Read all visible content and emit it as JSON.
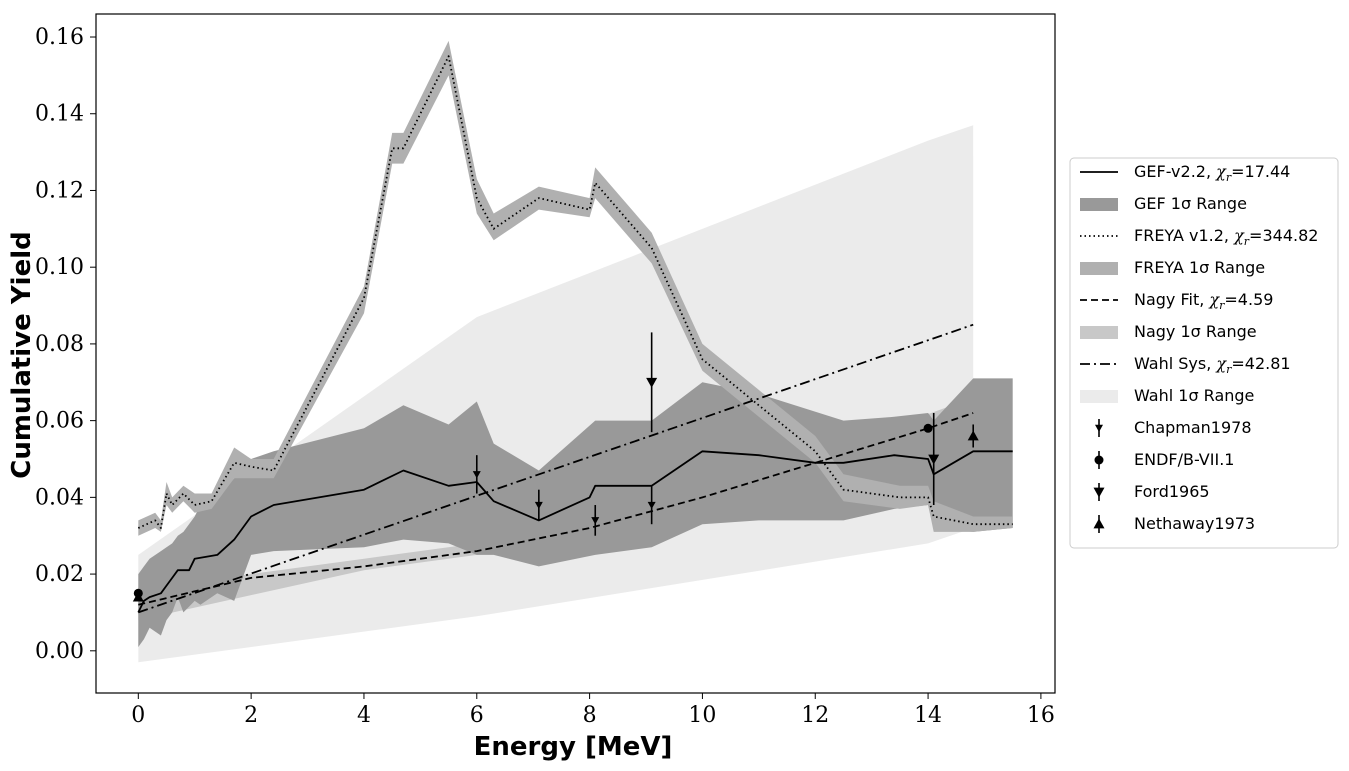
{
  "chart_data": {
    "type": "line",
    "xlabel": "Energy [MeV]",
    "ylabel": "Cumulative Yield",
    "xlim": [
      -0.75,
      16.25
    ],
    "ylim": [
      -0.011,
      0.166
    ],
    "xticks": [
      0,
      2,
      4,
      6,
      8,
      10,
      12,
      14,
      16
    ],
    "yticks": [
      0.0,
      0.02,
      0.04,
      0.06,
      0.08,
      0.1,
      0.12,
      0.14,
      0.16
    ],
    "xtick_labels": [
      "0",
      "2",
      "4",
      "6",
      "8",
      "10",
      "12",
      "14",
      "16"
    ],
    "ytick_labels": [
      "0.00",
      "0.02",
      "0.04",
      "0.06",
      "0.08",
      "0.10",
      "0.12",
      "0.14",
      "0.16"
    ],
    "legend_position": "center-right, outside plot",
    "colors": {
      "line": "#000000",
      "gef_band": "#999999",
      "freya_band": "#b0b0b0",
      "nagy_band": "#c8c8c8",
      "wahl_band": "#ebebeb"
    },
    "bands": [
      {
        "name": "Wahl 1σ Range",
        "color": "#ebebeb",
        "x": [
          0,
          6,
          14,
          14.8
        ],
        "upper": [
          0.025,
          0.087,
          0.133,
          0.137
        ],
        "lower": [
          -0.003,
          0.009,
          0.028,
          0.032
        ]
      },
      {
        "name": "Nagy 1σ Range",
        "color": "#c8c8c8",
        "x": [
          0,
          4,
          6,
          9,
          12,
          14.8
        ],
        "upper": [
          0.016,
          0.024,
          0.028,
          0.04,
          0.051,
          0.066
        ],
        "lower": [
          0.008,
          0.021,
          0.025,
          0.034,
          0.047,
          0.058
        ]
      },
      {
        "name": "GEF 1σ Range",
        "color": "#999999",
        "x": [
          0,
          0.1,
          0.2,
          0.4,
          0.5,
          0.6,
          0.7,
          0.8,
          1.0,
          1.1,
          1.4,
          1.7,
          2.0,
          2.4,
          4.0,
          4.7,
          5.5,
          6.0,
          6.3,
          7.1,
          8.1,
          9.1,
          10.0,
          11.0,
          12.5,
          13.4,
          14.0,
          14.1,
          14.8,
          15.5
        ],
        "upper": [
          0.02,
          0.022,
          0.024,
          0.026,
          0.027,
          0.028,
          0.03,
          0.031,
          0.035,
          0.038,
          0.04,
          0.045,
          0.05,
          0.052,
          0.058,
          0.064,
          0.059,
          0.065,
          0.054,
          0.047,
          0.06,
          0.06,
          0.07,
          0.067,
          0.06,
          0.061,
          0.062,
          0.06,
          0.071,
          0.071
        ],
        "lower": [
          0.001,
          0.003,
          0.006,
          0.004,
          0.008,
          0.01,
          0.014,
          0.01,
          0.013,
          0.012,
          0.015,
          0.013,
          0.025,
          0.026,
          0.027,
          0.029,
          0.028,
          0.025,
          0.025,
          0.022,
          0.025,
          0.027,
          0.033,
          0.034,
          0.034,
          0.037,
          0.038,
          0.032,
          0.031,
          0.032
        ]
      },
      {
        "name": "FREYA 1σ Range",
        "color": "#b0b0b0",
        "x": [
          0,
          0.3,
          0.4,
          0.5,
          0.6,
          0.8,
          1.0,
          1.3,
          1.7,
          2.0,
          2.4,
          4.0,
          4.5,
          4.7,
          5.5,
          6.0,
          6.3,
          7.1,
          8.0,
          8.1,
          9.1,
          10.0,
          11.0,
          12.0,
          12.5,
          13.5,
          14.0,
          14.1,
          14.8,
          15.5
        ],
        "upper": [
          0.034,
          0.036,
          0.034,
          0.044,
          0.04,
          0.043,
          0.041,
          0.041,
          0.053,
          0.05,
          0.05,
          0.095,
          0.135,
          0.135,
          0.159,
          0.123,
          0.114,
          0.121,
          0.118,
          0.126,
          0.109,
          0.08,
          0.068,
          0.056,
          0.046,
          0.043,
          0.043,
          0.039,
          0.035,
          0.035
        ],
        "lower": [
          0.03,
          0.032,
          0.031,
          0.038,
          0.036,
          0.039,
          0.036,
          0.037,
          0.045,
          0.045,
          0.045,
          0.088,
          0.127,
          0.127,
          0.15,
          0.114,
          0.107,
          0.115,
          0.113,
          0.118,
          0.101,
          0.073,
          0.061,
          0.049,
          0.039,
          0.037,
          0.038,
          0.031,
          0.031,
          0.032
        ]
      }
    ],
    "series": [
      {
        "name": "GEF-v2.2, χr=17.44",
        "style": "solid",
        "x": [
          0,
          0.1,
          0.2,
          0.4,
          0.5,
          0.6,
          0.7,
          0.9,
          1.0,
          1.4,
          1.7,
          2.0,
          2.4,
          4.0,
          4.7,
          5.5,
          6.0,
          6.3,
          7.1,
          8.0,
          8.1,
          9.1,
          10.0,
          11.0,
          12.0,
          12.5,
          13.4,
          14.0,
          14.1,
          14.8,
          15.5
        ],
        "y": [
          0.01,
          0.013,
          0.014,
          0.015,
          0.017,
          0.019,
          0.021,
          0.021,
          0.024,
          0.025,
          0.029,
          0.035,
          0.038,
          0.042,
          0.047,
          0.043,
          0.044,
          0.039,
          0.034,
          0.04,
          0.043,
          0.043,
          0.052,
          0.051,
          0.049,
          0.049,
          0.051,
          0.05,
          0.046,
          0.052,
          0.052
        ]
      },
      {
        "name": "FREYA v1.2, χr=344.82",
        "style": "dotted",
        "x": [
          0,
          0.3,
          0.4,
          0.5,
          0.6,
          0.8,
          1.0,
          1.3,
          1.7,
          2.0,
          2.4,
          4.0,
          4.5,
          4.7,
          5.5,
          6.0,
          6.3,
          7.1,
          8.0,
          8.1,
          9.1,
          10.0,
          11.0,
          12.0,
          12.5,
          13.5,
          14.0,
          14.1,
          14.8,
          15.5
        ],
        "y": [
          0.032,
          0.034,
          0.032,
          0.041,
          0.038,
          0.041,
          0.038,
          0.039,
          0.049,
          0.048,
          0.047,
          0.092,
          0.131,
          0.131,
          0.155,
          0.118,
          0.11,
          0.118,
          0.115,
          0.122,
          0.105,
          0.076,
          0.064,
          0.052,
          0.042,
          0.04,
          0.04,
          0.035,
          0.033,
          0.033
        ]
      },
      {
        "name": "Nagy Fit, χr=4.59",
        "style": "dashed",
        "x": [
          0,
          2,
          4,
          6,
          8,
          10,
          12,
          14,
          14.8
        ],
        "y": [
          0.012,
          0.019,
          0.022,
          0.026,
          0.032,
          0.04,
          0.049,
          0.058,
          0.062
        ]
      },
      {
        "name": "Wahl Sys, χr=42.81",
        "style": "dashdot",
        "x": [
          0,
          14.8
        ],
        "y": [
          0.01,
          0.085
        ]
      }
    ],
    "points": [
      {
        "name": "Chapman1978",
        "marker": "tri-down-small",
        "x": [
          6.0,
          7.1,
          8.1,
          9.1
        ],
        "y": [
          0.046,
          0.038,
          0.034,
          0.038
        ],
        "yerr": [
          0.005,
          0.004,
          0.004,
          0.005
        ]
      },
      {
        "name": "ENDF/B-VII.1",
        "marker": "circle",
        "x": [
          0.0,
          14.0
        ],
        "y": [
          0.015,
          0.058
        ],
        "yerr": [
          0.0,
          0.0
        ]
      },
      {
        "name": "Ford1965",
        "marker": "tri-down",
        "x": [
          9.1,
          14.1
        ],
        "y": [
          0.07,
          0.05
        ],
        "yerr": [
          0.013,
          0.012
        ]
      },
      {
        "name": "Nethaway1973",
        "marker": "tri-up",
        "x": [
          0.0,
          14.8
        ],
        "y": [
          0.014,
          0.056
        ],
        "yerr": [
          0.0,
          0.003
        ]
      }
    ]
  },
  "legend": {
    "items": [
      {
        "kind": "line",
        "style": "solid",
        "label": "GEF-v2.2, ",
        "chi_symbol": "χ",
        "chi_sub": "r",
        "chi_value": "=17.44"
      },
      {
        "kind": "patch",
        "color": "#999999",
        "label": "GEF 1σ Range"
      },
      {
        "kind": "line",
        "style": "dotted",
        "label": "FREYA v1.2, ",
        "chi_symbol": "χ",
        "chi_sub": "r",
        "chi_value": "=344.82"
      },
      {
        "kind": "patch",
        "color": "#b0b0b0",
        "label": "FREYA 1σ Range"
      },
      {
        "kind": "line",
        "style": "dashed",
        "label": "Nagy Fit, ",
        "chi_symbol": "χ",
        "chi_sub": "r",
        "chi_value": "=4.59"
      },
      {
        "kind": "patch",
        "color": "#c8c8c8",
        "label": "Nagy 1σ Range"
      },
      {
        "kind": "line",
        "style": "dashdot",
        "label": "Wahl Sys, ",
        "chi_symbol": "χ",
        "chi_sub": "r",
        "chi_value": "=42.81"
      },
      {
        "kind": "patch",
        "color": "#ebebeb",
        "label": "Wahl 1σ Range"
      },
      {
        "kind": "marker",
        "marker": "tri-down-small",
        "label": "Chapman1978"
      },
      {
        "kind": "marker",
        "marker": "circle",
        "label": "ENDF/B-VII.1"
      },
      {
        "kind": "marker",
        "marker": "tri-down",
        "label": "Ford1965"
      },
      {
        "kind": "marker",
        "marker": "tri-up",
        "label": "Nethaway1973"
      }
    ]
  }
}
